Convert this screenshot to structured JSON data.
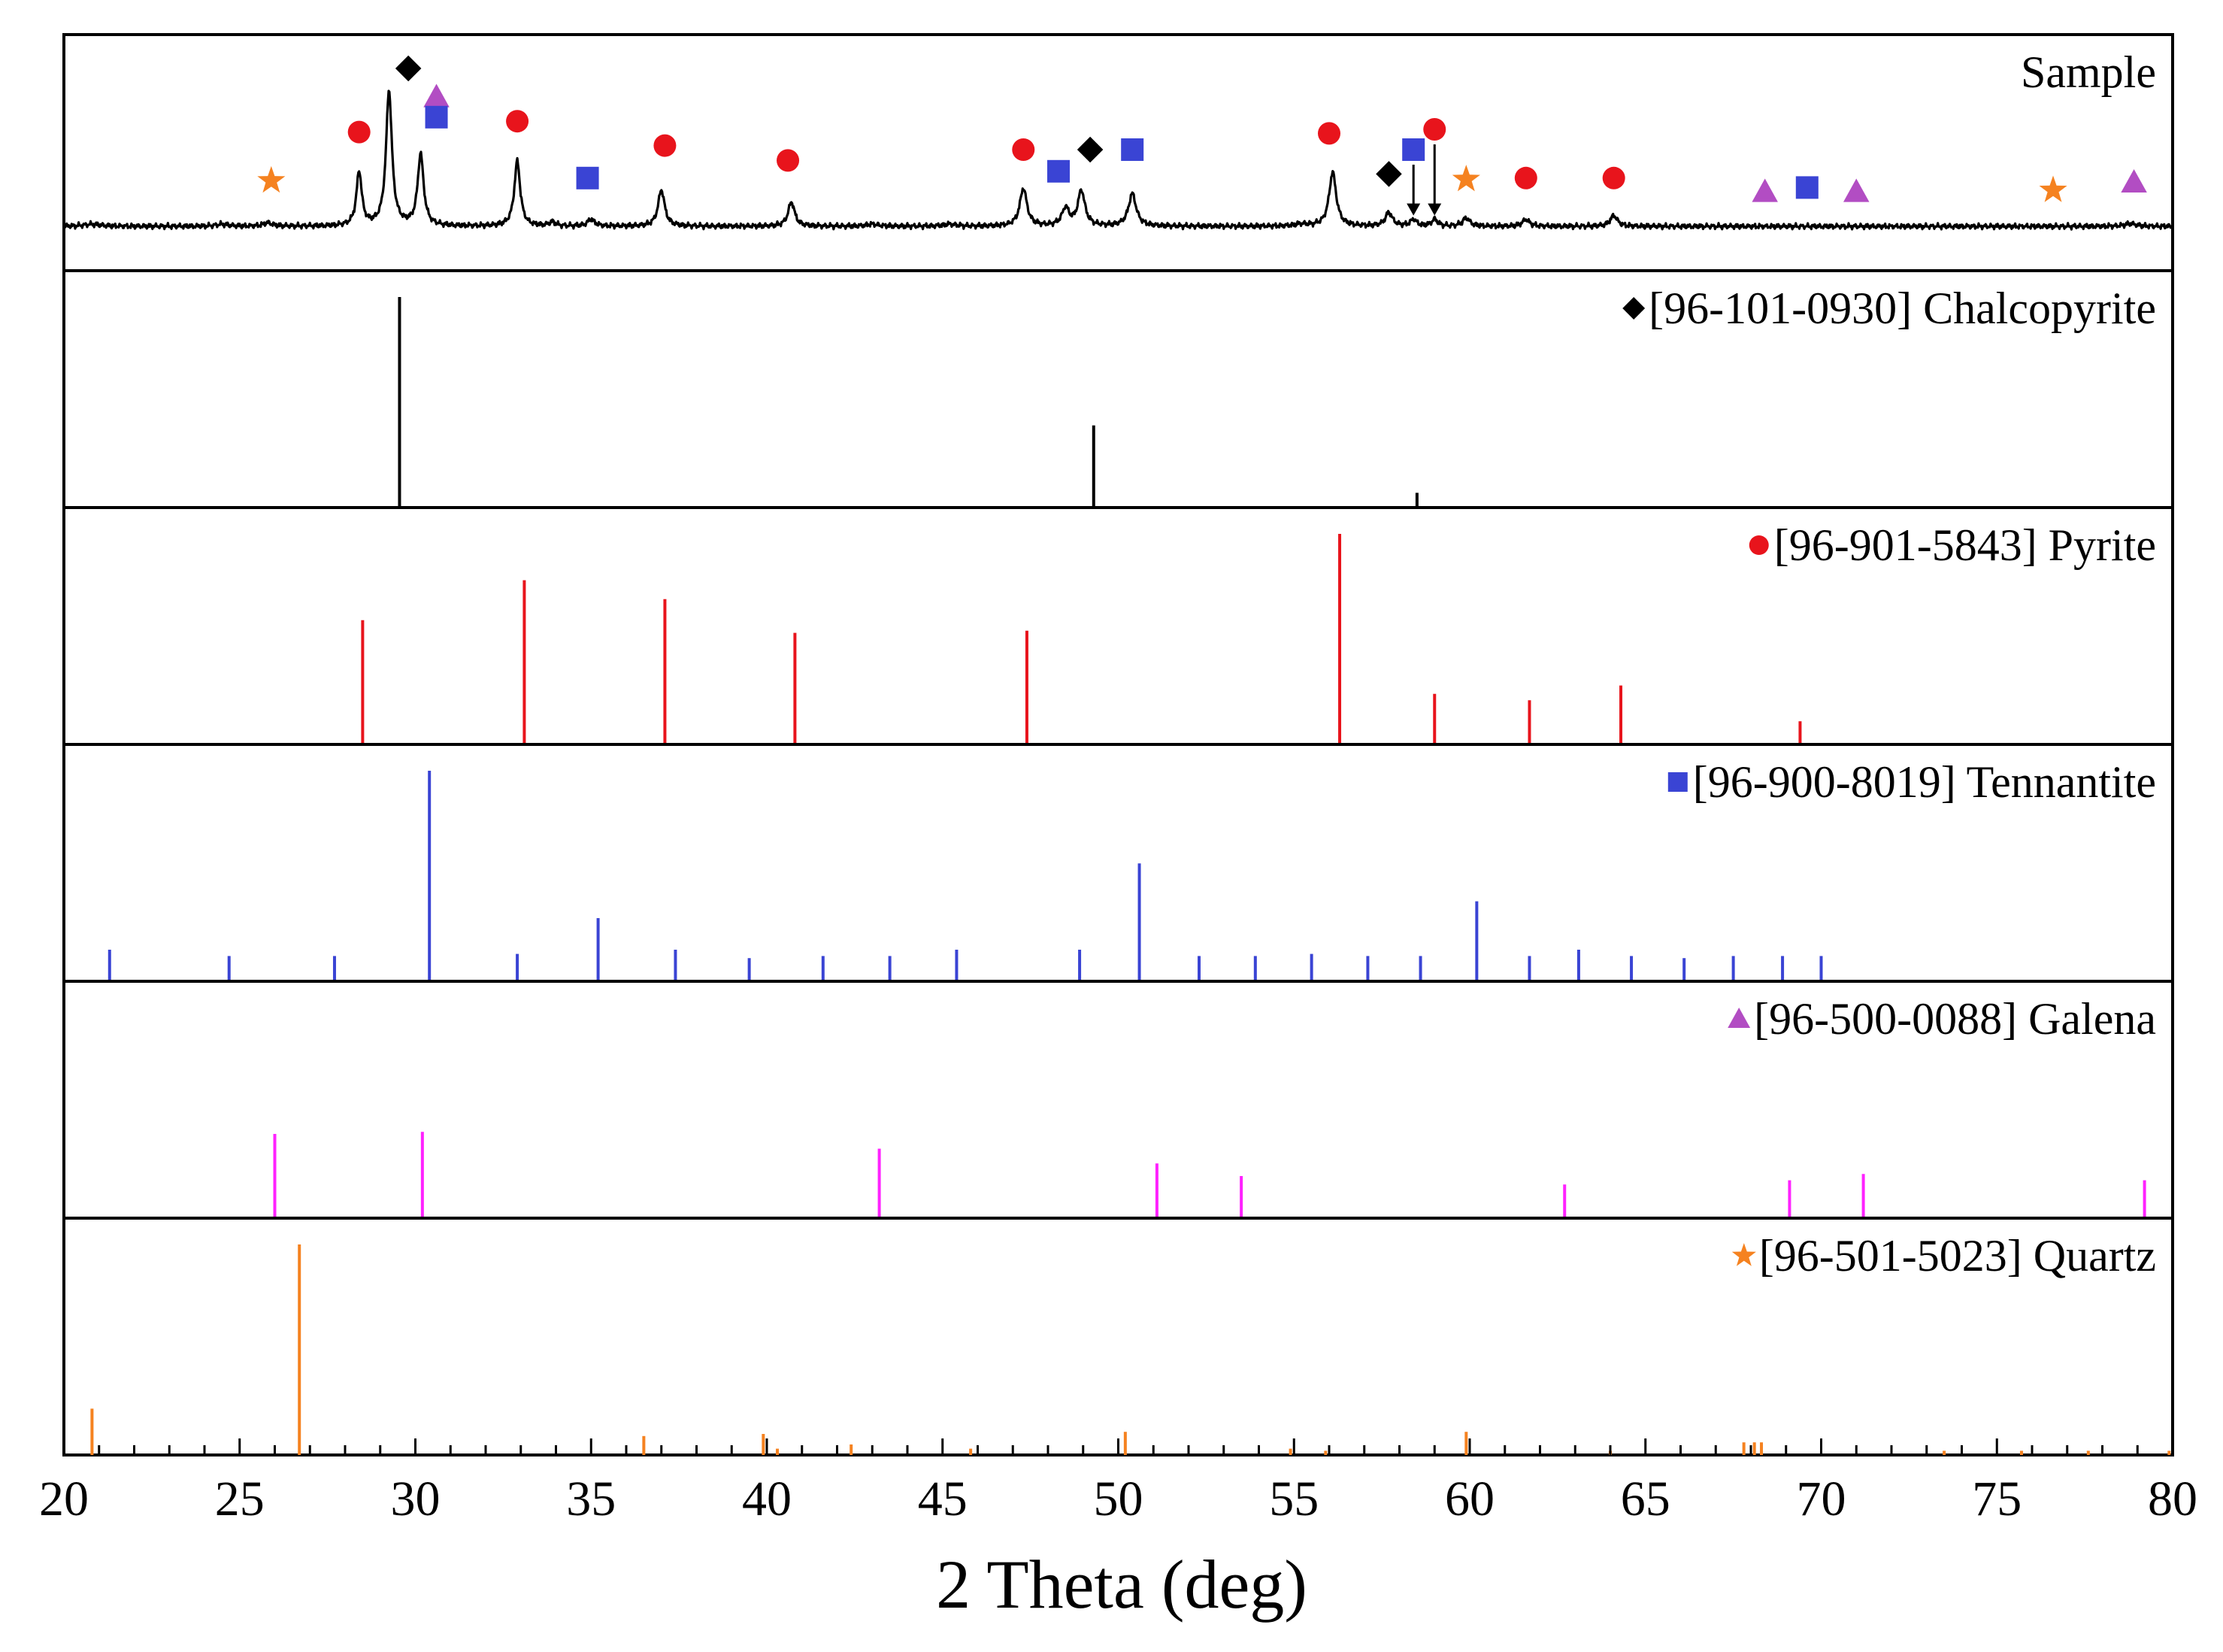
{
  "chart_data": {
    "type": "xrd-stacked",
    "xlabel": "2 Theta (deg)",
    "xlim": [
      20,
      80
    ],
    "x_ticks": [
      "20",
      "25",
      "30",
      "35",
      "40",
      "45",
      "50",
      "55",
      "60",
      "65",
      "70",
      "75",
      "80"
    ],
    "phase_colors": {
      "chalcopyrite": "#000000",
      "pyrite": "#e8141c",
      "tennantite": "#3a44d4",
      "galena": "#b24dc3",
      "quartz": "#f58220",
      "galena_lines": "#ff22ff"
    },
    "panels": [
      {
        "id": "sample",
        "label": "Sample",
        "phase": "",
        "type": "pattern",
        "peaks": [
          {
            "x": 20.8,
            "h": 0.015,
            "w": 0.3
          },
          {
            "x": 24.5,
            "h": 0.015,
            "w": 0.2
          },
          {
            "x": 25.8,
            "h": 0.025,
            "w": 0.15
          },
          {
            "x": 28.4,
            "h": 0.4,
            "w": 0.09
          },
          {
            "x": 29.25,
            "h": 1.0,
            "w": 0.1
          },
          {
            "x": 30.15,
            "h": 0.53,
            "w": 0.1
          },
          {
            "x": 32.9,
            "h": 0.48,
            "w": 0.1
          },
          {
            "x": 33.9,
            "h": 0.03,
            "w": 0.1
          },
          {
            "x": 35.0,
            "h": 0.05,
            "w": 0.12
          },
          {
            "x": 37.0,
            "h": 0.27,
            "w": 0.11
          },
          {
            "x": 40.7,
            "h": 0.18,
            "w": 0.11
          },
          {
            "x": 43.0,
            "h": 0.015,
            "w": 0.2
          },
          {
            "x": 45.2,
            "h": 0.015,
            "w": 0.2
          },
          {
            "x": 47.3,
            "h": 0.28,
            "w": 0.12
          },
          {
            "x": 48.5,
            "h": 0.13,
            "w": 0.12
          },
          {
            "x": 48.95,
            "h": 0.26,
            "w": 0.12
          },
          {
            "x": 50.4,
            "h": 0.24,
            "w": 0.13
          },
          {
            "x": 55.2,
            "h": 0.015,
            "w": 0.2
          },
          {
            "x": 56.1,
            "h": 0.4,
            "w": 0.12
          },
          {
            "x": 57.7,
            "h": 0.1,
            "w": 0.12
          },
          {
            "x": 58.4,
            "h": 0.05,
            "w": 0.1
          },
          {
            "x": 59.0,
            "h": 0.05,
            "w": 0.1
          },
          {
            "x": 59.9,
            "h": 0.06,
            "w": 0.12
          },
          {
            "x": 61.6,
            "h": 0.05,
            "w": 0.12
          },
          {
            "x": 64.1,
            "h": 0.08,
            "w": 0.12
          },
          {
            "x": 78.8,
            "h": 0.02,
            "w": 0.2
          }
        ],
        "markers": [
          {
            "x": 25.9,
            "h": 0.17,
            "shape": "star",
            "phase": "quartz"
          },
          {
            "x": 28.4,
            "h": 0.53,
            "shape": "circle",
            "phase": "pyrite"
          },
          {
            "x": 29.8,
            "h": 1.0,
            "shape": "diamond",
            "phase": "chalcopyrite"
          },
          {
            "x": 30.6,
            "h": 0.79,
            "shape": "triangle",
            "phase": "galena"
          },
          {
            "x": 30.6,
            "h": 0.64,
            "shape": "square",
            "phase": "tennantite"
          },
          {
            "x": 32.9,
            "h": 0.61,
            "shape": "circle",
            "phase": "pyrite"
          },
          {
            "x": 34.9,
            "h": 0.19,
            "shape": "square",
            "phase": "tennantite"
          },
          {
            "x": 37.1,
            "h": 0.43,
            "shape": "circle",
            "phase": "pyrite"
          },
          {
            "x": 40.6,
            "h": 0.32,
            "shape": "circle",
            "phase": "pyrite"
          },
          {
            "x": 47.3,
            "h": 0.4,
            "shape": "circle",
            "phase": "pyrite"
          },
          {
            "x": 48.3,
            "h": 0.24,
            "shape": "square",
            "phase": "tennantite"
          },
          {
            "x": 49.2,
            "h": 0.4,
            "shape": "diamond",
            "phase": "chalcopyrite"
          },
          {
            "x": 50.4,
            "h": 0.4,
            "shape": "square",
            "phase": "tennantite"
          },
          {
            "x": 56.0,
            "h": 0.52,
            "shape": "circle",
            "phase": "pyrite"
          },
          {
            "x": 57.7,
            "h": 0.22,
            "shape": "diamond",
            "phase": "chalcopyrite"
          },
          {
            "x": 58.4,
            "h": 0.4,
            "shape": "square",
            "phase": "tennantite",
            "arrow": true
          },
          {
            "x": 59.0,
            "h": 0.55,
            "shape": "circle",
            "phase": "pyrite",
            "arrow": true
          },
          {
            "x": 59.9,
            "h": 0.18,
            "shape": "star",
            "phase": "quartz"
          },
          {
            "x": 61.6,
            "h": 0.19,
            "shape": "circle",
            "phase": "pyrite"
          },
          {
            "x": 64.1,
            "h": 0.19,
            "shape": "circle",
            "phase": "pyrite"
          },
          {
            "x": 68.4,
            "h": 0.09,
            "shape": "triangle",
            "phase": "galena"
          },
          {
            "x": 69.6,
            "h": 0.12,
            "shape": "square",
            "phase": "tennantite"
          },
          {
            "x": 71.0,
            "h": 0.09,
            "shape": "triangle",
            "phase": "galena"
          },
          {
            "x": 76.6,
            "h": 0.1,
            "shape": "star",
            "phase": "quartz"
          },
          {
            "x": 78.9,
            "h": 0.16,
            "shape": "triangle",
            "phase": "galena"
          }
        ]
      },
      {
        "id": "chalcopyrite",
        "label": "[96-101-0930] Chalcopyrite",
        "phase": "chalcopyrite",
        "shape": "diamond",
        "type": "sticks",
        "sticks": [
          [
            29.55,
            1.0
          ],
          [
            49.3,
            0.39
          ],
          [
            58.5,
            0.07
          ]
        ]
      },
      {
        "id": "pyrite",
        "label": "[96-901-5843] Pyrite",
        "phase": "pyrite",
        "shape": "circle",
        "type": "sticks",
        "sticks": [
          [
            28.5,
            0.59
          ],
          [
            33.1,
            0.78
          ],
          [
            37.1,
            0.69
          ],
          [
            40.8,
            0.53
          ],
          [
            47.4,
            0.54
          ],
          [
            56.3,
            1.0
          ],
          [
            59.0,
            0.24
          ],
          [
            61.7,
            0.21
          ],
          [
            64.3,
            0.28
          ],
          [
            69.4,
            0.11
          ]
        ]
      },
      {
        "id": "tennantite",
        "label": "[96-900-8019] Tennantite",
        "phase": "tennantite",
        "shape": "square",
        "type": "sticks",
        "sticks": [
          [
            21.3,
            0.15
          ],
          [
            24.7,
            0.12
          ],
          [
            27.7,
            0.12
          ],
          [
            30.4,
            1.0
          ],
          [
            32.9,
            0.13
          ],
          [
            35.2,
            0.3
          ],
          [
            37.4,
            0.15
          ],
          [
            39.5,
            0.11
          ],
          [
            41.6,
            0.12
          ],
          [
            43.5,
            0.12
          ],
          [
            45.4,
            0.15
          ],
          [
            48.9,
            0.15
          ],
          [
            50.6,
            0.56
          ],
          [
            52.3,
            0.12
          ],
          [
            53.9,
            0.12
          ],
          [
            55.5,
            0.13
          ],
          [
            57.1,
            0.12
          ],
          [
            58.6,
            0.12
          ],
          [
            60.2,
            0.38
          ],
          [
            61.7,
            0.12
          ],
          [
            63.1,
            0.15
          ],
          [
            64.6,
            0.12
          ],
          [
            66.1,
            0.11
          ],
          [
            67.5,
            0.12
          ],
          [
            68.9,
            0.12
          ],
          [
            70.0,
            0.12
          ]
        ]
      },
      {
        "id": "galena",
        "label": "[96-500-0088] Galena",
        "phase": "galena",
        "shape": "triangle",
        "type": "sticks",
        "sticks": [
          [
            26.0,
            0.4
          ],
          [
            30.2,
            0.41
          ],
          [
            43.2,
            0.33
          ],
          [
            51.1,
            0.26
          ],
          [
            53.5,
            0.2
          ],
          [
            62.7,
            0.16
          ],
          [
            69.1,
            0.18
          ],
          [
            71.2,
            0.21
          ],
          [
            79.2,
            0.18
          ]
        ]
      },
      {
        "id": "quartz",
        "label": "[96-501-5023] Quartz",
        "phase": "quartz",
        "shape": "star",
        "type": "sticks",
        "sticks": [
          [
            20.8,
            0.22
          ],
          [
            26.7,
            1.0
          ],
          [
            36.5,
            0.09
          ],
          [
            39.9,
            0.1
          ],
          [
            40.3,
            0.03
          ],
          [
            42.4,
            0.05
          ],
          [
            45.8,
            0.03
          ],
          [
            50.2,
            0.11
          ],
          [
            54.9,
            0.03
          ],
          [
            55.9,
            0.02
          ],
          [
            59.9,
            0.11
          ],
          [
            64.0,
            0.02
          ],
          [
            67.8,
            0.06
          ],
          [
            68.1,
            0.06
          ],
          [
            68.3,
            0.06
          ],
          [
            73.5,
            0.02
          ],
          [
            75.7,
            0.02
          ],
          [
            77.6,
            0.02
          ],
          [
            79.9,
            0.02
          ]
        ]
      }
    ]
  }
}
